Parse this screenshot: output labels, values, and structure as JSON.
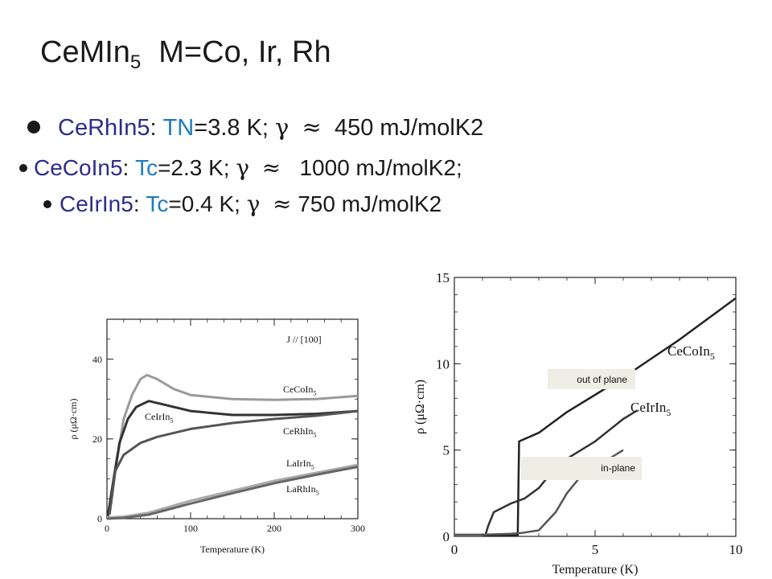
{
  "slide": {
    "title_main": "CeMIn",
    "title_sub": "5",
    "title_rest": "M=Co, Ir, Rh",
    "bullets": [
      {
        "name": "CeRhIn5",
        "colon": ":",
        "param": "TN",
        "value": "=3.8 K;",
        "gamma": "γ",
        "approx": "≈",
        "gamma_value": "450 mJ/molK2"
      },
      {
        "name": "CeCoIn5",
        "colon": ":",
        "param": "Tc",
        "value": "=2.3 K;",
        "gamma": "γ",
        "approx": "≈",
        "gamma_value": "1000 mJ/molK2;"
      },
      {
        "name": "CeIrIn5",
        "colon": ":",
        "param": "Tc",
        "value": "=0.4 K;",
        "gamma": "γ",
        "approx": "≈",
        "gamma_value": "750 mJ/molK2"
      }
    ]
  },
  "chart_data": [
    {
      "type": "line",
      "xlabel": "Temperature (K)",
      "ylabel": "ρ (μΩ·cm)",
      "xlim": [
        0,
        300
      ],
      "ylim": [
        0,
        50
      ],
      "x_ticks": [
        "0",
        "100",
        "200",
        "300"
      ],
      "y_ticks": [
        "0",
        "20",
        "40"
      ],
      "annotation": "J // [100]",
      "series": [
        {
          "name": "CeCoIn5",
          "color": "#9a9a9a",
          "points": [
            [
              2,
              1.5
            ],
            [
              10,
              12
            ],
            [
              20,
              25
            ],
            [
              30,
              31
            ],
            [
              40,
              35
            ],
            [
              48,
              36
            ],
            [
              60,
              35
            ],
            [
              80,
              32.5
            ],
            [
              100,
              31
            ],
            [
              150,
              30
            ],
            [
              200,
              29.8
            ],
            [
              250,
              30
            ],
            [
              300,
              30.8
            ]
          ]
        },
        {
          "name": "CeIrIn5",
          "color": "#333333",
          "points": [
            [
              1,
              0.5
            ],
            [
              8,
              10
            ],
            [
              15,
              19
            ],
            [
              25,
              25
            ],
            [
              35,
              28
            ],
            [
              50,
              29.5
            ],
            [
              70,
              28.5
            ],
            [
              100,
              27
            ],
            [
              150,
              26
            ],
            [
              200,
              26
            ],
            [
              250,
              26.3
            ],
            [
              300,
              27
            ]
          ]
        },
        {
          "name": "CeRhIn5",
          "color": "#555555",
          "points": [
            [
              3,
              1
            ],
            [
              5,
              4
            ],
            [
              10,
              12
            ],
            [
              20,
              16
            ],
            [
              40,
              19
            ],
            [
              60,
              20.5
            ],
            [
              100,
              22.5
            ],
            [
              150,
              24
            ],
            [
              200,
              25
            ],
            [
              250,
              25.8
            ],
            [
              300,
              27
            ]
          ]
        },
        {
          "name": "LaIrIn5",
          "color": "#aaaaaa",
          "points": [
            [
              0,
              0.3
            ],
            [
              20,
              0.5
            ],
            [
              50,
              1.5
            ],
            [
              100,
              4.5
            ],
            [
              150,
              7
            ],
            [
              200,
              9.5
            ],
            [
              250,
              11.5
            ],
            [
              300,
              13.5
            ]
          ]
        },
        {
          "name": "LaRhIn5",
          "color": "#666666",
          "points": [
            [
              0,
              0
            ],
            [
              20,
              0.2
            ],
            [
              50,
              1
            ],
            [
              100,
              3.8
            ],
            [
              150,
              6.4
            ],
            [
              200,
              8.9
            ],
            [
              250,
              11
            ],
            [
              300,
              13
            ]
          ]
        }
      ],
      "labels": [
        "CeCoIn",
        "CeIrIn",
        "CeRhIn",
        "LaIrIn",
        "LaRhIn"
      ],
      "label_sub": "5"
    },
    {
      "type": "line",
      "xlabel": "Temperature (K)",
      "ylabel": "ρ (μΩ·cm)",
      "xlim": [
        0,
        10
      ],
      "ylim": [
        0,
        15
      ],
      "x_ticks": [
        "0",
        "5",
        "10"
      ],
      "y_ticks": [
        "0",
        "5",
        "10",
        "15"
      ],
      "series": [
        {
          "name": "CeCoIn5",
          "color": "#222222",
          "points": [
            [
              1,
              0.05
            ],
            [
              2,
              0.05
            ],
            [
              2.25,
              0.05
            ],
            [
              2.3,
              5.5
            ],
            [
              3,
              6
            ],
            [
              4,
              7.2
            ],
            [
              5,
              8.2
            ],
            [
              6,
              9.2
            ],
            [
              7,
              10.3
            ],
            [
              8,
              11.4
            ],
            [
              9,
              12.6
            ],
            [
              10,
              13.8
            ]
          ]
        },
        {
          "name": "CeIrIn5",
          "color": "#333333",
          "points": [
            [
              1,
              0.05
            ],
            [
              1.1,
              0.05
            ],
            [
              1.2,
              0.6
            ],
            [
              1.4,
              1.4
            ],
            [
              2,
              1.9
            ],
            [
              2.5,
              2.2
            ],
            [
              3,
              2.8
            ],
            [
              3.4,
              3.6
            ],
            [
              4,
              4.5
            ],
            [
              5,
              5.5
            ],
            [
              6,
              6.8
            ],
            [
              6.5,
              7.3
            ]
          ]
        },
        {
          "name": "CeRhIn5",
          "color": "#555555",
          "points": [
            [
              0,
              0.1
            ],
            [
              1,
              0.1
            ],
            [
              2,
              0.15
            ],
            [
              2.4,
              0.2
            ],
            [
              3,
              0.35
            ],
            [
              3.6,
              1.4
            ],
            [
              4,
              2.5
            ],
            [
              4.6,
              3.7
            ],
            [
              5,
              4.1
            ],
            [
              5.6,
              4.6
            ],
            [
              6,
              5
            ]
          ]
        }
      ],
      "labels": [
        "CeCoIn",
        "CeIrIn"
      ],
      "label_sub": "5",
      "annotations": [
        "out of plane",
        "in-plane"
      ]
    }
  ]
}
